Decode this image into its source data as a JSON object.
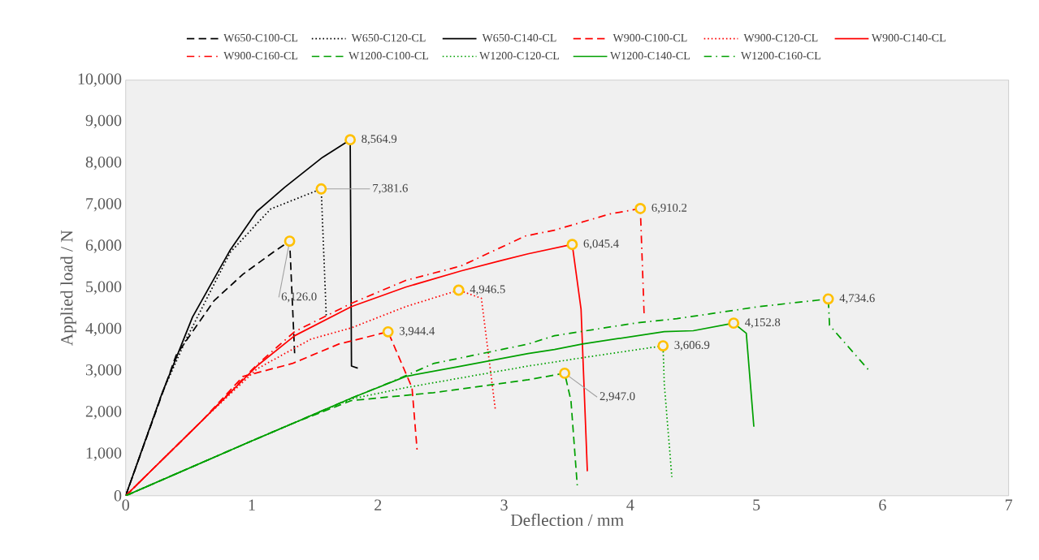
{
  "chart_data": {
    "type": "line",
    "xlabel": "Deflection / mm",
    "ylabel": "Applied load / N",
    "xlim": [
      0,
      7
    ],
    "xticks": [
      0,
      1,
      2,
      3,
      4,
      5,
      6,
      7
    ],
    "ylim": [
      0,
      10000
    ],
    "yticks": [
      0,
      {
        "value": 1000,
        "label": "1,000"
      },
      {
        "value": 2000,
        "label": "2,000"
      },
      {
        "value": 3000,
        "label": "3,000"
      },
      {
        "value": 4000,
        "label": "4,000"
      },
      {
        "value": 5000,
        "label": "5,000"
      },
      {
        "value": 6000,
        "label": "6,000"
      },
      {
        "value": 7000,
        "label": "7,000"
      },
      {
        "value": 8000,
        "label": "8,000"
      },
      {
        "value": 9000,
        "label": "9,000"
      },
      {
        "value": 10000,
        "label": "10,000"
      }
    ],
    "legend": "top",
    "grid": false,
    "marker": "none",
    "series": [
      {
        "name": "W650-C100-CL",
        "color": "#000000",
        "line_style": "dashed",
        "x": [
          0,
          0.4,
          0.7,
          0.93,
          1.17,
          1.3,
          1.34
        ],
        "values": [
          0,
          3380,
          4690,
          5330,
          5860,
          6126,
          3380
        ]
      },
      {
        "name": "W650-C120-CL",
        "color": "#000000",
        "line_style": "dotted",
        "x": [
          0,
          0.29,
          0.48,
          0.83,
          1.15,
          1.55,
          1.59
        ],
        "values": [
          0,
          2480,
          3770,
          5860,
          6900,
          7381.6,
          4340
        ]
      },
      {
        "name": "W650-C140-CL",
        "color": "#000000",
        "line_style": "solid",
        "x": [
          0,
          0.29,
          0.53,
          0.83,
          1.04,
          1.26,
          1.56,
          1.78,
          1.79,
          1.84
        ],
        "values": [
          0,
          2480,
          4300,
          5920,
          6840,
          7420,
          8140,
          8564.9,
          3120,
          3070
        ]
      },
      {
        "name": "W900-C100-CL",
        "color": "#ff0000",
        "line_style": "dashed",
        "x": [
          0,
          0.61,
          0.93,
          1.32,
          1.69,
          2.08,
          2.14,
          2.27,
          2.31
        ],
        "values": [
          0,
          1820,
          2870,
          3180,
          3650,
          3944.4,
          3520,
          2600,
          1110
        ]
      },
      {
        "name": "W900-C120-CL",
        "color": "#ff0000",
        "line_style": "dotted",
        "x": [
          0,
          0.61,
          1.04,
          1.47,
          1.79,
          2.22,
          2.64,
          2.82,
          2.93
        ],
        "values": [
          0,
          1820,
          3050,
          3770,
          4040,
          4550,
          4946.5,
          4750,
          2090
        ]
      },
      {
        "name": "W900-C140-CL",
        "color": "#ff0000",
        "line_style": "solid",
        "x": [
          0,
          0.61,
          1.04,
          1.34,
          1.79,
          2.22,
          2.66,
          2.98,
          3.19,
          3.54,
          3.61,
          3.66
        ],
        "values": [
          0,
          1820,
          3120,
          3850,
          4550,
          5020,
          5410,
          5660,
          5820,
          6045.4,
          4490,
          590
        ]
      },
      {
        "name": "W900-C160-CL",
        "color": "#ff0000",
        "line_style": "dashdot",
        "x": [
          0,
          0.61,
          1.04,
          1.34,
          1.79,
          2.22,
          2.66,
          3.17,
          3.4,
          3.84,
          4.08,
          4.11
        ],
        "values": [
          0,
          1820,
          3150,
          3950,
          4630,
          5180,
          5530,
          6250,
          6390,
          6780,
          6910.2,
          4390
        ]
      },
      {
        "name": "W1200-C100-CL",
        "color": "#00a000",
        "line_style": "dashed",
        "x": [
          0,
          1.0,
          1.34,
          1.79,
          2.44,
          3.19,
          3.48,
          3.53,
          3.58
        ],
        "values": [
          0,
          1320,
          1760,
          2290,
          2480,
          2790,
          2947,
          2290,
          250
        ]
      },
      {
        "name": "W1200-C120-CL",
        "color": "#00a000",
        "line_style": "dotted",
        "x": [
          0,
          1.0,
          1.34,
          1.79,
          2.22,
          3.19,
          3.62,
          4.26,
          4.27,
          4.33
        ],
        "values": [
          0,
          1320,
          1760,
          2330,
          2600,
          3120,
          3320,
          3606.9,
          2680,
          450
        ]
      },
      {
        "name": "W1200-C140-CL",
        "color": "#00a000",
        "line_style": "solid",
        "x": [
          0,
          1.0,
          1.34,
          1.79,
          2.22,
          2.66,
          3.19,
          3.4,
          3.62,
          4.27,
          4.5,
          4.82,
          4.92,
          4.98
        ],
        "values": [
          0,
          1320,
          1760,
          2350,
          2870,
          3120,
          3420,
          3520,
          3650,
          3950,
          3970,
          4152.8,
          3910,
          1660
        ]
      },
      {
        "name": "W1200-C160-CL",
        "color": "#00a000",
        "line_style": "dashdot",
        "x": [
          0,
          1.0,
          1.34,
          1.79,
          2.1,
          2.44,
          3.19,
          3.4,
          4.05,
          4.37,
          5.02,
          5.57,
          5.58,
          5.9
        ],
        "values": [
          0,
          1320,
          1760,
          2350,
          2730,
          3180,
          3650,
          3850,
          4160,
          4260,
          4550,
          4734.6,
          4100,
          2990
        ]
      }
    ],
    "annotations": [
      {
        "text": "8,564.9",
        "x": 1.78,
        "y": 8564.9
      },
      {
        "text": "7,381.6",
        "x": 1.55,
        "y": 7381.6
      },
      {
        "text": "6,126.0",
        "x": 1.3,
        "y": 6126
      },
      {
        "text": "6,910.2",
        "x": 4.08,
        "y": 6910.2
      },
      {
        "text": "6,045.4",
        "x": 3.54,
        "y": 6045.4
      },
      {
        "text": "4,946.5",
        "x": 2.64,
        "y": 4946.5
      },
      {
        "text": "3,944.4",
        "x": 2.08,
        "y": 3944.4
      },
      {
        "text": "4,734.6",
        "x": 5.57,
        "y": 4734.6
      },
      {
        "text": "4,152.8",
        "x": 4.82,
        "y": 4152.8
      },
      {
        "text": "3,606.9",
        "x": 4.26,
        "y": 3606.9
      },
      {
        "text": "2,947.0",
        "x": 3.48,
        "y": 2947
      }
    ]
  }
}
